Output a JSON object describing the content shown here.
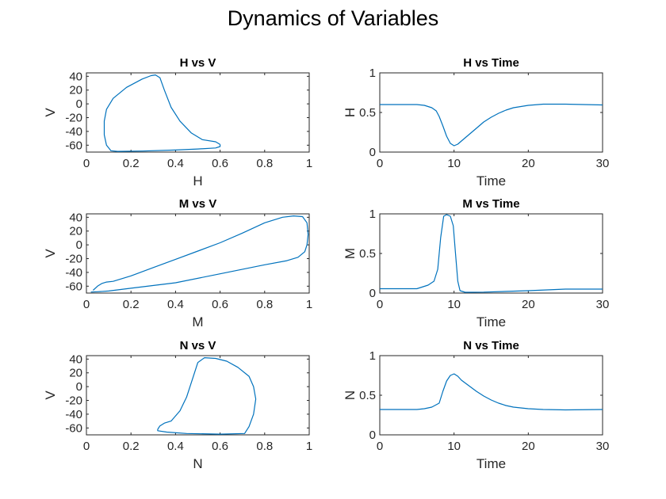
{
  "figure": {
    "title": "Dynamics of Variables"
  },
  "chart_data": [
    {
      "type": "line",
      "title": "H vs V",
      "xlabel": "H",
      "ylabel": "V",
      "xlim": [
        0,
        1
      ],
      "ylim": [
        -70,
        45
      ],
      "xticks": [
        0,
        0.2,
        0.4,
        0.6,
        0.8,
        1
      ],
      "xtick_labels": [
        "0",
        "0.2",
        "0.4",
        "0.6",
        "0.8",
        "1"
      ],
      "yticks": [
        -60,
        -40,
        -20,
        0,
        20,
        40
      ],
      "ytick_labels": [
        "-60",
        "-40",
        "-20",
        "0",
        "20",
        "40"
      ],
      "color": "#0072BD",
      "series": [
        {
          "points": [
            [
              0.6,
              -59
            ],
            [
              0.58,
              -55
            ],
            [
              0.52,
              -52
            ],
            [
              0.47,
              -42
            ],
            [
              0.42,
              -25
            ],
            [
              0.38,
              -5
            ],
            [
              0.35,
              20
            ],
            [
              0.33,
              38
            ],
            [
              0.31,
              42
            ],
            [
              0.29,
              41
            ],
            [
              0.25,
              36
            ],
            [
              0.18,
              24
            ],
            [
              0.12,
              8
            ],
            [
              0.09,
              -8
            ],
            [
              0.08,
              -25
            ],
            [
              0.08,
              -45
            ],
            [
              0.09,
              -60
            ],
            [
              0.11,
              -68
            ],
            [
              0.14,
              -69
            ],
            [
              0.25,
              -68.5
            ],
            [
              0.4,
              -67
            ],
            [
              0.5,
              -65.5
            ],
            [
              0.58,
              -64
            ],
            [
              0.6,
              -62
            ],
            [
              0.6,
              -59
            ]
          ]
        }
      ]
    },
    {
      "type": "line",
      "title": "H vs Time",
      "xlabel": "Time",
      "ylabel": "H",
      "xlim": [
        0,
        30
      ],
      "ylim": [
        0,
        1
      ],
      "xticks": [
        0,
        10,
        20,
        30
      ],
      "xtick_labels": [
        "0",
        "10",
        "20",
        "30"
      ],
      "yticks": [
        0,
        0.5,
        1
      ],
      "ytick_labels": [
        "0",
        "0.5",
        "1"
      ],
      "color": "#0072BD",
      "series": [
        {
          "points": [
            [
              0,
              0.6
            ],
            [
              5,
              0.6
            ],
            [
              6,
              0.59
            ],
            [
              7,
              0.56
            ],
            [
              7.6,
              0.52
            ],
            [
              8,
              0.45
            ],
            [
              8.5,
              0.33
            ],
            [
              9,
              0.2
            ],
            [
              9.5,
              0.11
            ],
            [
              10,
              0.08
            ],
            [
              10.5,
              0.1
            ],
            [
              11,
              0.14
            ],
            [
              12,
              0.22
            ],
            [
              13,
              0.3
            ],
            [
              14,
              0.38
            ],
            [
              15,
              0.44
            ],
            [
              16,
              0.49
            ],
            [
              17,
              0.53
            ],
            [
              18,
              0.56
            ],
            [
              20,
              0.59
            ],
            [
              22,
              0.605
            ],
            [
              25,
              0.605
            ],
            [
              30,
              0.595
            ]
          ]
        }
      ]
    },
    {
      "type": "line",
      "title": "M vs V",
      "xlabel": "M",
      "ylabel": "V",
      "xlim": [
        0,
        1
      ],
      "ylim": [
        -70,
        45
      ],
      "xticks": [
        0,
        0.2,
        0.4,
        0.6,
        0.8,
        1
      ],
      "xtick_labels": [
        "0",
        "0.2",
        "0.4",
        "0.6",
        "0.8",
        "1"
      ],
      "yticks": [
        -60,
        -40,
        -20,
        0,
        20,
        40
      ],
      "ytick_labels": [
        "-60",
        "-40",
        "-20",
        "0",
        "20",
        "40"
      ],
      "color": "#0072BD",
      "series": [
        {
          "points": [
            [
              0.03,
              -66
            ],
            [
              0.05,
              -60
            ],
            [
              0.07,
              -56
            ],
            [
              0.09,
              -54
            ],
            [
              0.12,
              -53
            ],
            [
              0.2,
              -45
            ],
            [
              0.3,
              -33
            ],
            [
              0.4,
              -21
            ],
            [
              0.5,
              -9
            ],
            [
              0.6,
              3
            ],
            [
              0.7,
              17
            ],
            [
              0.8,
              32
            ],
            [
              0.88,
              40
            ],
            [
              0.93,
              42
            ],
            [
              0.97,
              41
            ],
            [
              0.99,
              32
            ],
            [
              0.995,
              15
            ],
            [
              0.99,
              0
            ],
            [
              0.98,
              -10
            ],
            [
              0.95,
              -18
            ],
            [
              0.9,
              -23
            ],
            [
              0.8,
              -29
            ],
            [
              0.6,
              -42
            ],
            [
              0.4,
              -55
            ],
            [
              0.2,
              -63
            ],
            [
              0.1,
              -67
            ],
            [
              0.05,
              -68
            ],
            [
              0.02,
              -68.5
            ]
          ]
        }
      ]
    },
    {
      "type": "line",
      "title": "M vs Time",
      "xlabel": "Time",
      "ylabel": "M",
      "xlim": [
        0,
        30
      ],
      "ylim": [
        0,
        1
      ],
      "xticks": [
        0,
        10,
        20,
        30
      ],
      "xtick_labels": [
        "0",
        "10",
        "20",
        "30"
      ],
      "yticks": [
        0,
        0.5,
        1
      ],
      "ytick_labels": [
        "0",
        "0.5",
        "1"
      ],
      "color": "#0072BD",
      "series": [
        {
          "points": [
            [
              0,
              0.055
            ],
            [
              5,
              0.055
            ],
            [
              5.5,
              0.07
            ],
            [
              6.5,
              0.1
            ],
            [
              7.3,
              0.15
            ],
            [
              7.8,
              0.3
            ],
            [
              8.2,
              0.7
            ],
            [
              8.6,
              0.97
            ],
            [
              9,
              0.99
            ],
            [
              9.5,
              0.97
            ],
            [
              9.9,
              0.85
            ],
            [
              10.2,
              0.5
            ],
            [
              10.5,
              0.15
            ],
            [
              10.8,
              0.03
            ],
            [
              11.5,
              0.01
            ],
            [
              14,
              0.012
            ],
            [
              20,
              0.03
            ],
            [
              25,
              0.05
            ],
            [
              30,
              0.05
            ]
          ]
        }
      ]
    },
    {
      "type": "line",
      "title": "N vs V",
      "xlabel": "N",
      "ylabel": "V",
      "xlim": [
        0,
        1
      ],
      "ylim": [
        -70,
        45
      ],
      "xticks": [
        0,
        0.2,
        0.4,
        0.6,
        0.8,
        1
      ],
      "xtick_labels": [
        "0",
        "0.2",
        "0.4",
        "0.6",
        "0.8",
        "1"
      ],
      "yticks": [
        -60,
        -40,
        -20,
        0,
        20,
        40
      ],
      "ytick_labels": [
        "-60",
        "-40",
        "-20",
        "0",
        "20",
        "40"
      ],
      "color": "#0072BD",
      "series": [
        {
          "points": [
            [
              0.32,
              -62
            ],
            [
              0.33,
              -57
            ],
            [
              0.35,
              -53
            ],
            [
              0.38,
              -50
            ],
            [
              0.42,
              -35
            ],
            [
              0.45,
              -15
            ],
            [
              0.48,
              15
            ],
            [
              0.5,
              35
            ],
            [
              0.53,
              42
            ],
            [
              0.58,
              41
            ],
            [
              0.63,
              37
            ],
            [
              0.68,
              28
            ],
            [
              0.73,
              15
            ],
            [
              0.75,
              0
            ],
            [
              0.76,
              -18
            ],
            [
              0.75,
              -40
            ],
            [
              0.73,
              -58
            ],
            [
              0.71,
              -68
            ],
            [
              0.6,
              -69
            ],
            [
              0.45,
              -68
            ],
            [
              0.36,
              -66
            ],
            [
              0.32,
              -64
            ],
            [
              0.32,
              -62
            ]
          ]
        }
      ]
    },
    {
      "type": "line",
      "title": "N vs Time",
      "xlabel": "Time",
      "ylabel": "N",
      "xlim": [
        0,
        30
      ],
      "ylim": [
        0,
        1
      ],
      "xticks": [
        0,
        10,
        20,
        30
      ],
      "xtick_labels": [
        "0",
        "10",
        "20",
        "30"
      ],
      "yticks": [
        0,
        0.5,
        1
      ],
      "ytick_labels": [
        "0",
        "0.5",
        "1"
      ],
      "color": "#0072BD",
      "series": [
        {
          "points": [
            [
              0,
              0.32
            ],
            [
              5,
              0.32
            ],
            [
              6,
              0.33
            ],
            [
              7,
              0.35
            ],
            [
              8,
              0.4
            ],
            [
              8.5,
              0.55
            ],
            [
              9,
              0.68
            ],
            [
              9.5,
              0.75
            ],
            [
              10,
              0.77
            ],
            [
              10.5,
              0.74
            ],
            [
              11,
              0.69
            ],
            [
              12,
              0.62
            ],
            [
              13,
              0.55
            ],
            [
              14,
              0.49
            ],
            [
              15,
              0.44
            ],
            [
              16,
              0.4
            ],
            [
              17,
              0.37
            ],
            [
              18,
              0.35
            ],
            [
              20,
              0.33
            ],
            [
              22,
              0.32
            ],
            [
              25,
              0.315
            ],
            [
              30,
              0.32
            ]
          ]
        }
      ]
    }
  ]
}
